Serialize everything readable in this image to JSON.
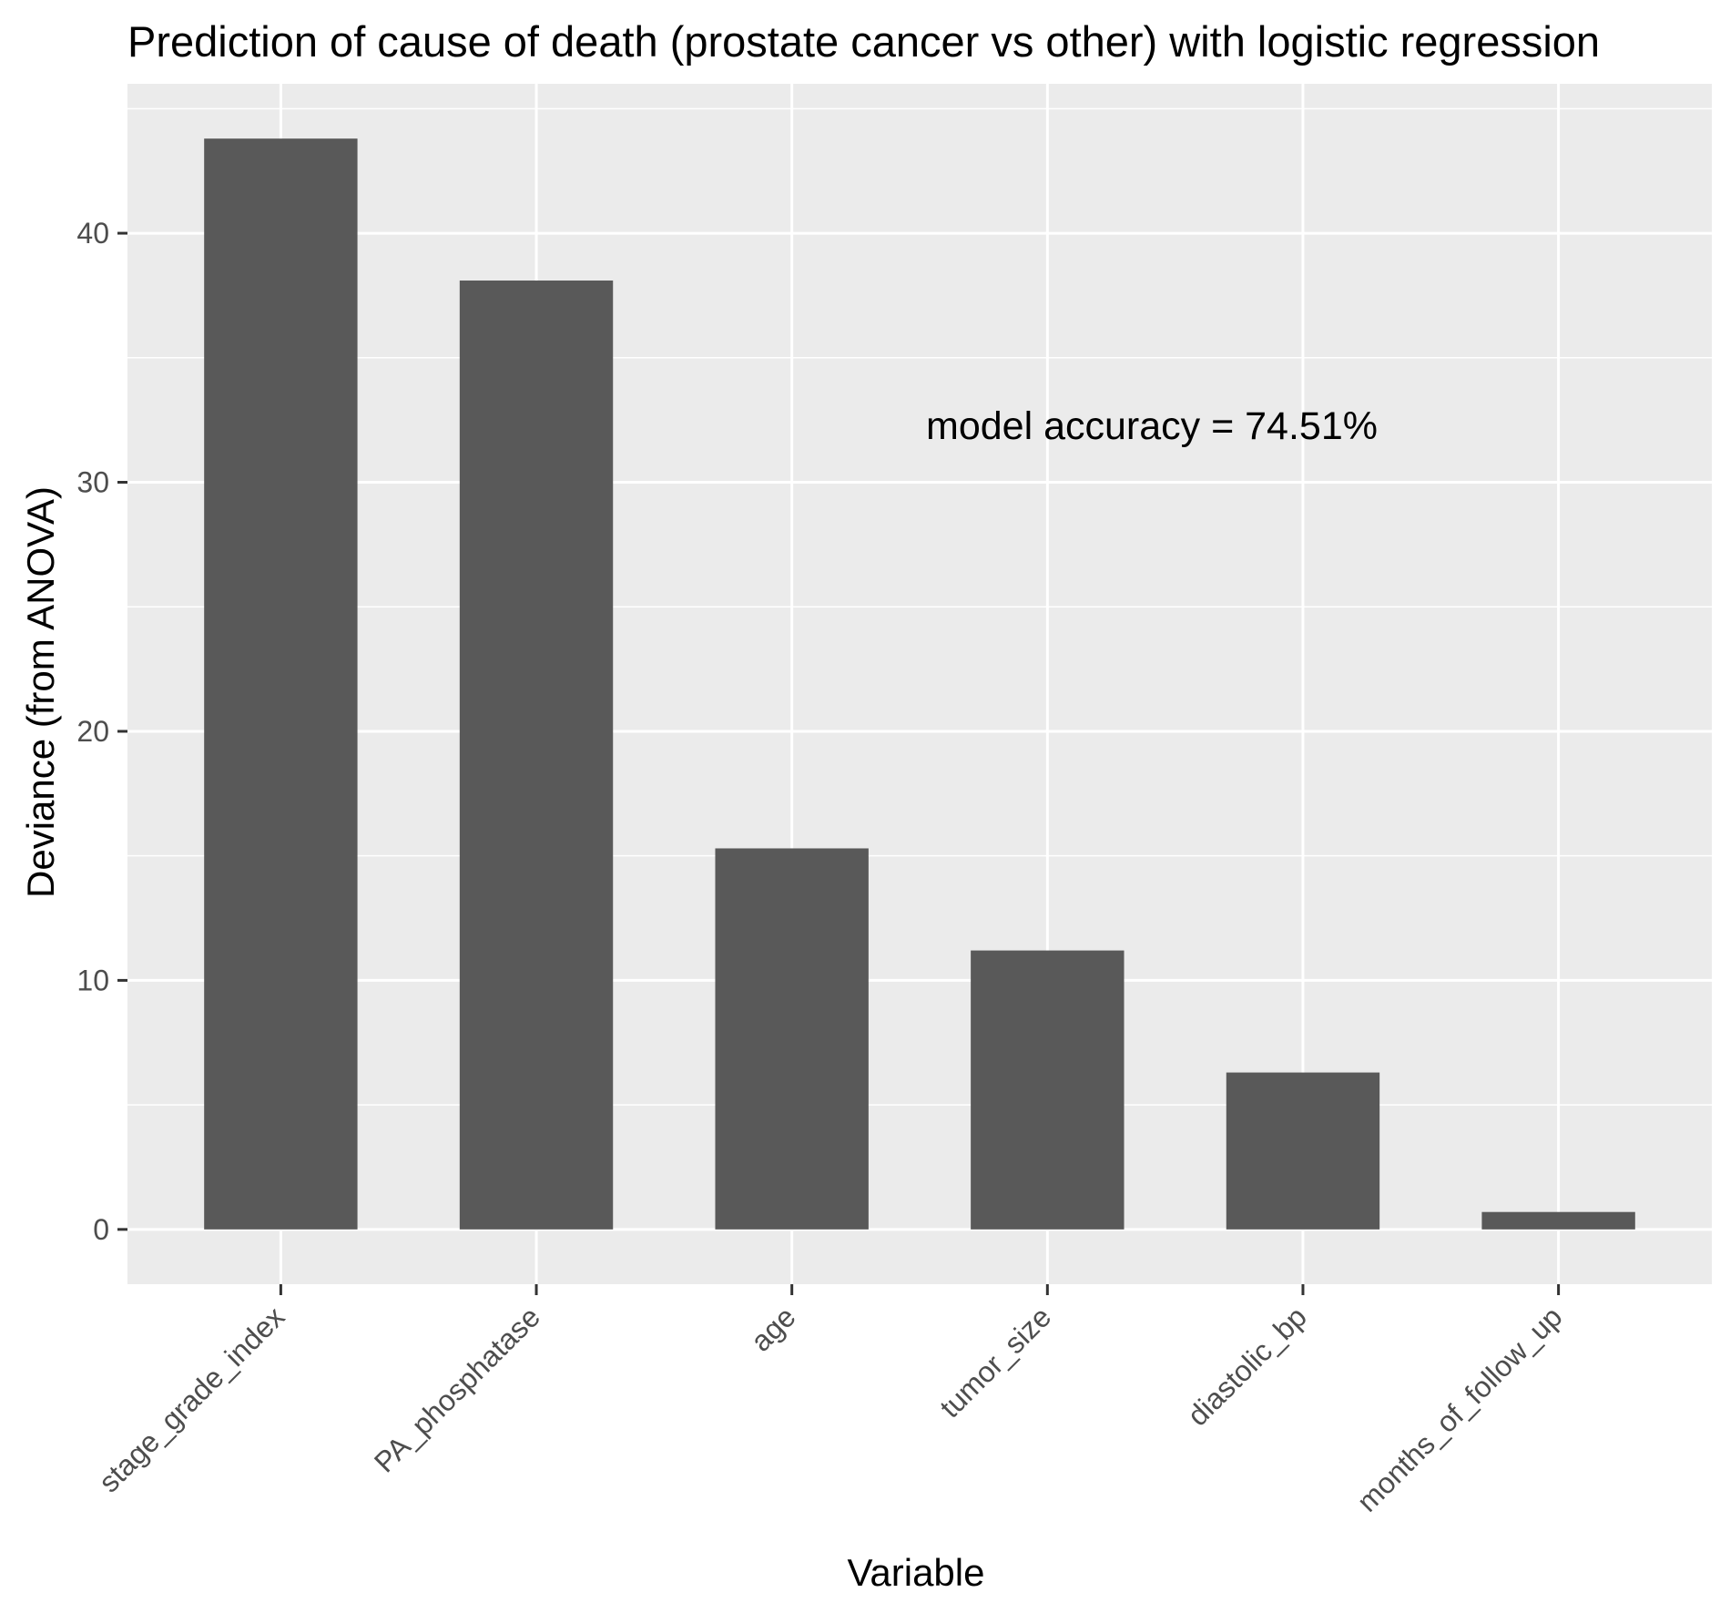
{
  "chart_data": {
    "type": "bar",
    "title": "Prediction of cause of death (prostate cancer vs other) with logistic regression",
    "xlabel": "Variable",
    "ylabel": "Deviance (from ANOVA)",
    "categories": [
      "stage_grade_index",
      "PA_phosphatase",
      "age",
      "tumor_size",
      "diastolic_bp",
      "months_of_follow_up"
    ],
    "values": [
      43.8,
      38.1,
      15.3,
      11.2,
      6.3,
      0.7
    ],
    "yticks": [
      0,
      10,
      20,
      30,
      40
    ],
    "ylim": [
      -2.2,
      46.0
    ],
    "grid": true,
    "annotation": "model accuracy = 74.51%",
    "colors": {
      "panel_background": "#ebebeb",
      "grid_line": "#ffffff",
      "bar_fill": "#595959",
      "tick_text": "#4d4d4d",
      "text": "#000000"
    }
  }
}
